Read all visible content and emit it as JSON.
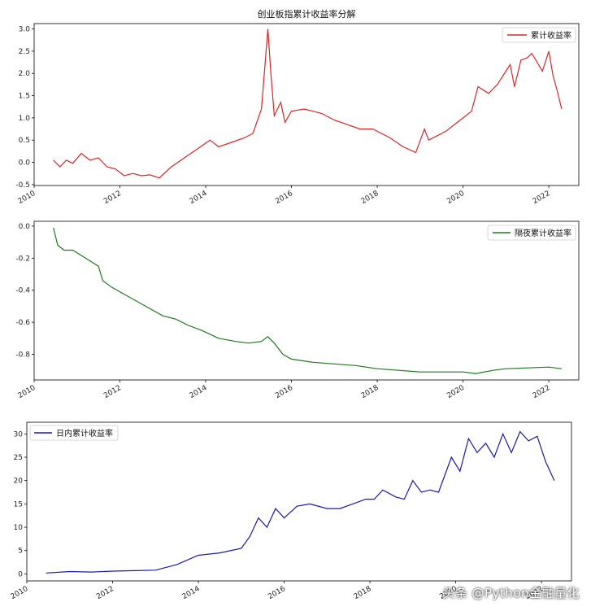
{
  "title": "创业板指累计收益率分解",
  "watermark": "头条 @Python金融量化",
  "chart_data": [
    {
      "type": "line",
      "legend": "累计收益率",
      "legend_position": "top-right",
      "color": "#d62728",
      "xlim": [
        2010.0,
        2022.7
      ],
      "ylim": [
        -0.52,
        3.12
      ],
      "xticks": [
        "2010",
        "2012",
        "2014",
        "2016",
        "2018",
        "2020",
        "2022"
      ],
      "yticks": [
        "-0.5",
        "0.0",
        "0.5",
        "1.0",
        "1.5",
        "2.0",
        "2.5",
        "3.0"
      ],
      "x": [
        2010.45,
        2010.6,
        2010.75,
        2010.9,
        2011.1,
        2011.3,
        2011.5,
        2011.7,
        2011.9,
        2012.1,
        2012.3,
        2012.5,
        2012.7,
        2012.92,
        2013.2,
        2013.5,
        2013.8,
        2014.1,
        2014.3,
        2014.6,
        2014.9,
        2015.1,
        2015.3,
        2015.4,
        2015.45,
        2015.52,
        2015.6,
        2015.75,
        2015.85,
        2016.0,
        2016.3,
        2016.7,
        2017.0,
        2017.3,
        2017.6,
        2017.9,
        2018.3,
        2018.6,
        2018.9,
        2019.1,
        2019.2,
        2019.4,
        2019.6,
        2019.8,
        2020.0,
        2020.2,
        2020.35,
        2020.6,
        2020.8,
        2021.0,
        2021.1,
        2021.2,
        2021.35,
        2021.5,
        2021.6,
        2021.7,
        2021.85,
        2022.0,
        2022.1,
        2022.2,
        2022.3
      ],
      "values": [
        0.05,
        -0.1,
        0.05,
        -0.02,
        0.2,
        0.05,
        0.1,
        -0.1,
        -0.15,
        -0.3,
        -0.25,
        -0.3,
        -0.28,
        -0.35,
        -0.1,
        0.1,
        0.3,
        0.5,
        0.35,
        0.45,
        0.55,
        0.65,
        1.2,
        2.4,
        3.0,
        2.0,
        1.05,
        1.35,
        0.9,
        1.15,
        1.2,
        1.1,
        0.95,
        0.85,
        0.75,
        0.75,
        0.55,
        0.35,
        0.22,
        0.75,
        0.5,
        0.6,
        0.7,
        0.85,
        1.0,
        1.15,
        1.7,
        1.55,
        1.75,
        2.05,
        2.2,
        1.7,
        2.3,
        2.35,
        2.45,
        2.3,
        2.05,
        2.5,
        1.95,
        1.6,
        1.2
      ]
    },
    {
      "type": "line",
      "legend": "隔夜累计收益率",
      "legend_position": "top-right",
      "color": "#1f7a1f",
      "xlim": [
        2010.0,
        2022.7
      ],
      "ylim": [
        -0.96,
        0.03
      ],
      "xticks": [
        "2010",
        "2012",
        "2014",
        "2016",
        "2018",
        "2020",
        "2022"
      ],
      "yticks": [
        "-0.8",
        "-0.6",
        "-0.4",
        "-0.2",
        "0.0"
      ],
      "x": [
        2010.45,
        2010.55,
        2010.7,
        2010.9,
        2011.2,
        2011.5,
        2011.6,
        2011.8,
        2012.2,
        2012.6,
        2013.0,
        2013.3,
        2013.6,
        2013.9,
        2014.3,
        2014.7,
        2015.0,
        2015.3,
        2015.45,
        2015.6,
        2015.8,
        2016.0,
        2016.5,
        2017.0,
        2017.5,
        2018.0,
        2018.5,
        2019.0,
        2019.5,
        2020.0,
        2020.3,
        2020.7,
        2021.0,
        2021.5,
        2022.0,
        2022.3
      ],
      "values": [
        -0.01,
        -0.12,
        -0.15,
        -0.15,
        -0.2,
        -0.25,
        -0.34,
        -0.38,
        -0.44,
        -0.5,
        -0.56,
        -0.58,
        -0.62,
        -0.65,
        -0.7,
        -0.72,
        -0.73,
        -0.72,
        -0.69,
        -0.73,
        -0.8,
        -0.83,
        -0.85,
        -0.86,
        -0.87,
        -0.89,
        -0.9,
        -0.91,
        -0.91,
        -0.91,
        -0.92,
        -0.9,
        -0.89,
        -0.885,
        -0.88,
        -0.89
      ]
    },
    {
      "type": "line",
      "legend": "日内累计收益率",
      "legend_position": "top-left",
      "color": "#1a1aa6",
      "xlim": [
        2010.0,
        2022.7
      ],
      "ylim": [
        -1.5,
        32.5
      ],
      "xticks": [
        "2010",
        "2012",
        "2014",
        "2016",
        "2018",
        "2020",
        "2022"
      ],
      "yticks": [
        "0",
        "5",
        "10",
        "15",
        "20",
        "25",
        "30"
      ],
      "x": [
        2010.45,
        2011.0,
        2011.5,
        2012.0,
        2012.5,
        2013.0,
        2013.5,
        2014.0,
        2014.5,
        2015.0,
        2015.2,
        2015.4,
        2015.6,
        2015.8,
        2016.0,
        2016.3,
        2016.6,
        2017.0,
        2017.3,
        2017.6,
        2017.9,
        2018.1,
        2018.3,
        2018.6,
        2018.8,
        2019.0,
        2019.2,
        2019.4,
        2019.6,
        2019.9,
        2020.1,
        2020.3,
        2020.5,
        2020.7,
        2020.9,
        2021.1,
        2021.3,
        2021.5,
        2021.7,
        2021.9,
        2022.1,
        2022.3
      ],
      "values": [
        0.2,
        0.5,
        0.4,
        0.6,
        0.7,
        0.8,
        2.0,
        4.0,
        4.5,
        5.5,
        8.0,
        12.0,
        10.0,
        14.0,
        12.0,
        14.5,
        15.0,
        14.0,
        14.0,
        15.0,
        16.0,
        16.0,
        18.0,
        16.5,
        16.0,
        20.0,
        17.5,
        18.0,
        17.5,
        25.0,
        22.0,
        29.0,
        26.0,
        28.0,
        25.0,
        30.0,
        26.0,
        30.5,
        28.5,
        29.5,
        24.0,
        20.0
      ]
    }
  ]
}
